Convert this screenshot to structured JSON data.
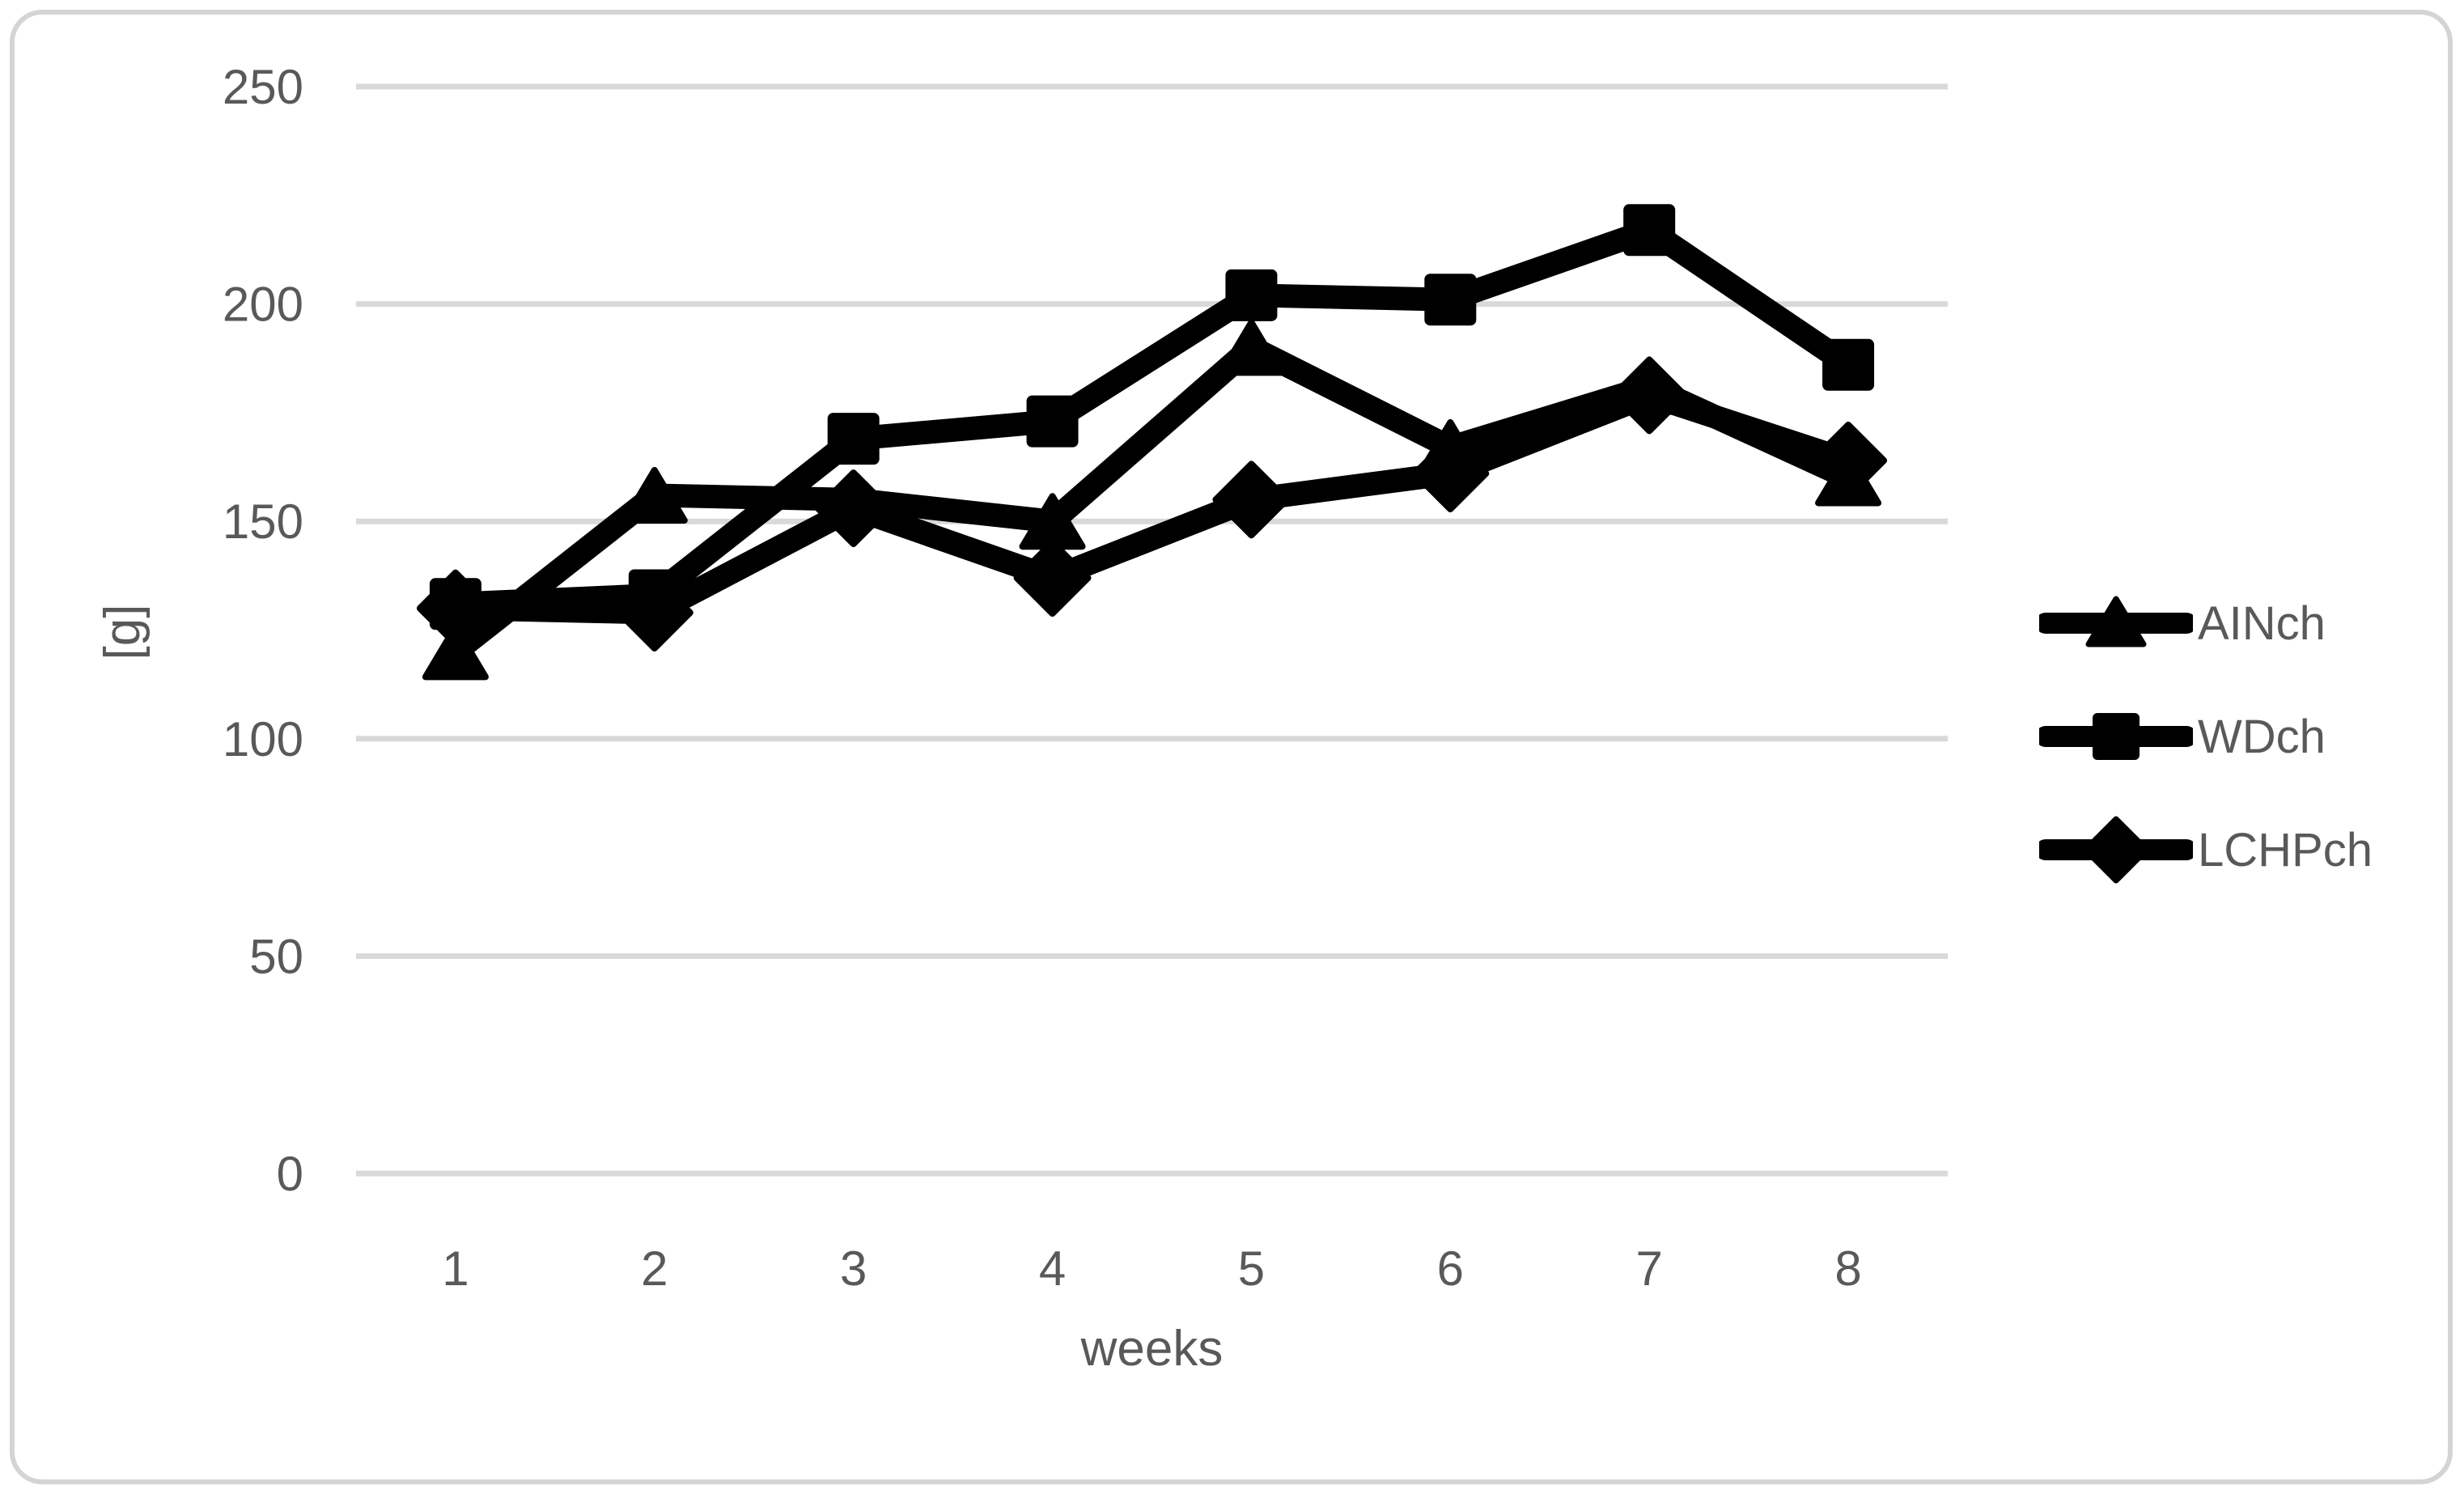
{
  "chart_data": {
    "type": "line",
    "title": "",
    "xlabel": "weeks",
    "ylabel": "[g]",
    "x": [
      1,
      2,
      3,
      4,
      5,
      6,
      7,
      8
    ],
    "x_tick_labels": [
      "1",
      "2",
      "3",
      "4",
      "5",
      "6",
      "7",
      "8"
    ],
    "ylim": [
      0,
      250
    ],
    "ytick_step": 50,
    "y_tick_labels": [
      "0",
      "50",
      "100",
      "150",
      "200",
      "250"
    ],
    "grid": true,
    "legend_position": "right",
    "series": [
      {
        "name": "AINch",
        "marker": "triangle",
        "values": [
          120,
          156,
          155,
          150,
          190,
          167,
          181,
          160
        ]
      },
      {
        "name": "WDch",
        "marker": "square",
        "values": [
          131,
          133,
          169,
          173,
          202,
          201,
          217,
          186
        ]
      },
      {
        "name": "LCHPch",
        "marker": "diamond",
        "values": [
          130,
          129,
          153,
          137,
          155,
          161,
          179,
          164
        ]
      }
    ]
  },
  "colors": {
    "series_line": "#000000",
    "marker_fill": "#000000",
    "gridline": "#d9d9d9",
    "axis_text": "#595959",
    "chart_border": "#d4d4d4",
    "background": "#ffffff"
  }
}
